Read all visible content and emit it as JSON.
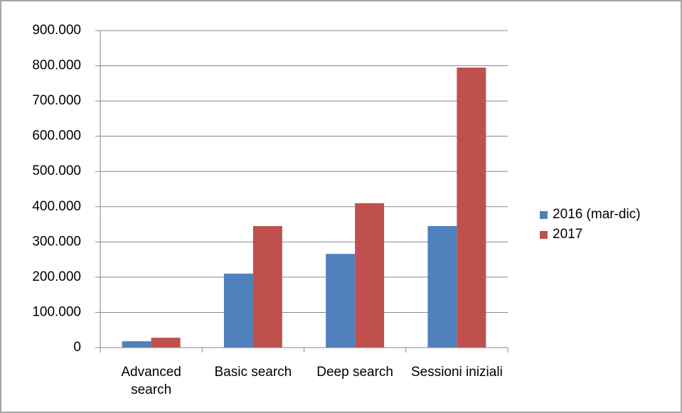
{
  "chart_data": {
    "type": "bar",
    "categories": [
      "Advanced search",
      "Basic search",
      "Deep search",
      "Sessioni iniziali"
    ],
    "series": [
      {
        "name": "2016 (mar-dic)",
        "color": "#4f81bd",
        "values": [
          18000,
          210000,
          266000,
          345000
        ]
      },
      {
        "name": "2017",
        "color": "#c0504d",
        "values": [
          28000,
          345000,
          410000,
          795000
        ]
      }
    ],
    "ylim": [
      0,
      900000
    ],
    "yticks": [
      0,
      {
        "value": 100000,
        "label": "100.000"
      },
      {
        "value": 200000,
        "label": "200.000"
      },
      {
        "value": 300000,
        "label": "300.000"
      },
      {
        "value": 400000,
        "label": "400.000"
      },
      {
        "value": 500000,
        "label": "500.000"
      },
      {
        "value": 600000,
        "label": "600.000"
      },
      {
        "value": 700000,
        "label": "700.000"
      },
      {
        "value": 800000,
        "label": "800.000"
      },
      {
        "value": 900000,
        "label": "900.000"
      }
    ],
    "grid": true,
    "legend": "right"
  }
}
